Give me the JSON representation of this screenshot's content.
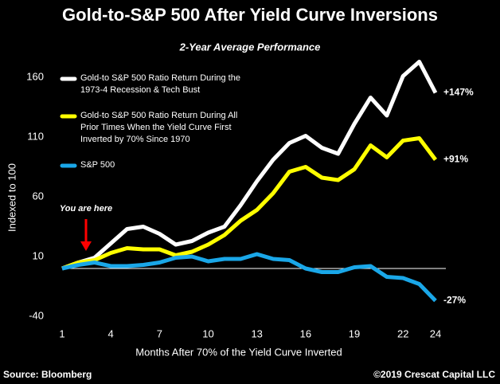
{
  "chart_data": {
    "type": "line",
    "title": "Gold-to-S&P 500 After Yield Curve Inversions",
    "subtitle": "2-Year Average Performance",
    "y_label": "Indexed to 100",
    "x_label": "Months After 70% of the Yield Curve Inverted",
    "annotation": "You are here",
    "source": "Source: Bloomberg",
    "credit": "©2019 Crescat Capital LLC",
    "x": [
      1,
      2,
      3,
      4,
      5,
      6,
      7,
      8,
      9,
      10,
      11,
      12,
      13,
      14,
      15,
      16,
      17,
      18,
      19,
      20,
      21,
      22,
      23,
      24
    ],
    "xlim": [
      1,
      24
    ],
    "xticks": [
      1,
      4,
      7,
      10,
      13,
      16,
      19,
      22,
      24
    ],
    "ylim": [
      -40,
      180
    ],
    "yticks": [
      -40,
      10,
      60,
      110,
      160
    ],
    "series": [
      {
        "name": "Gold-to S&P 500 Ratio Return During the 1973-4 Recession & Tech Bust",
        "color": "#ffffff",
        "values": [
          0,
          5,
          9,
          21,
          33,
          35,
          29,
          20,
          23,
          30,
          35,
          53,
          73,
          91,
          105,
          111,
          101,
          96,
          121,
          143,
          128,
          161,
          173,
          147
        ],
        "value_labels": [
          null,
          null,
          null,
          null,
          null,
          null,
          null,
          null,
          null,
          null,
          null,
          null,
          null,
          null,
          null,
          null,
          null,
          null,
          null,
          null,
          null,
          null,
          null,
          "+147%"
        ]
      },
      {
        "name": "Gold-to S&P 500 Ratio Return During All Prior Times When the Yield Curve First Inverted by 70% Since 1970",
        "color": "#ffff00",
        "values": [
          0,
          5,
          7,
          13,
          17,
          16,
          16,
          11,
          14,
          20,
          28,
          40,
          49,
          63,
          81,
          85,
          76,
          74,
          83,
          103,
          93,
          107,
          109,
          91
        ],
        "value_labels": [
          null,
          null,
          null,
          null,
          null,
          null,
          null,
          null,
          null,
          null,
          null,
          null,
          null,
          null,
          null,
          null,
          null,
          null,
          null,
          null,
          null,
          null,
          null,
          "+91%"
        ]
      },
      {
        "name": "S&P 500",
        "color": "#1aa7e8",
        "values": [
          0,
          3,
          5,
          2,
          2,
          3,
          5,
          9,
          10,
          6,
          8,
          8,
          12,
          8,
          7,
          0,
          -3,
          -3,
          1,
          2,
          -7,
          -8,
          -13,
          -27
        ],
        "value_labels": [
          null,
          null,
          null,
          null,
          null,
          null,
          null,
          null,
          null,
          null,
          null,
          null,
          null,
          null,
          null,
          null,
          null,
          null,
          null,
          null,
          null,
          null,
          null,
          "-27%"
        ]
      }
    ]
  }
}
